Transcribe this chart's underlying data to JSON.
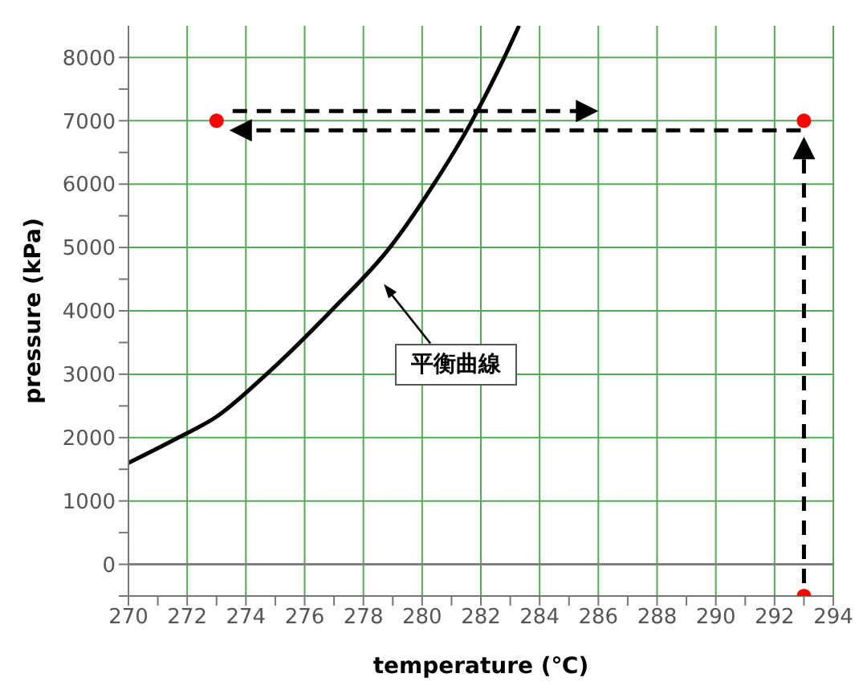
{
  "chart_data": {
    "type": "line",
    "xlabel": "temperature (℃)",
    "ylabel": "pressure (kPa)",
    "xlim": [
      270,
      294
    ],
    "ylim": [
      -500,
      8500
    ],
    "xticks": [
      270,
      {
        "value": 271,
        "label": null
      },
      272,
      {
        "value": 273,
        "label": null
      },
      274,
      {
        "value": 275,
        "label": null
      },
      276,
      {
        "value": 277,
        "label": null
      },
      278,
      {
        "value": 279,
        "label": null
      },
      280,
      {
        "value": 281,
        "label": null
      },
      282,
      {
        "value": 283,
        "label": null
      },
      284,
      {
        "value": 285,
        "label": null
      },
      286,
      {
        "value": 287,
        "label": null
      },
      288,
      {
        "value": 289,
        "label": null
      },
      290,
      {
        "value": 291,
        "label": null
      },
      292,
      {
        "value": 293,
        "label": null
      },
      294
    ],
    "yticks": [
      {
        "value": -500,
        "label": null
      },
      0,
      {
        "value": 500,
        "label": null
      },
      1000,
      {
        "value": 1500,
        "label": null
      },
      2000,
      {
        "value": 2500,
        "label": null
      },
      3000,
      {
        "value": 3500,
        "label": null
      },
      4000,
      {
        "value": 4500,
        "label": null
      },
      5000,
      {
        "value": 5500,
        "label": null
      },
      6000,
      {
        "value": 6500,
        "label": null
      },
      7000,
      {
        "value": 7500,
        "label": null
      },
      8000
    ],
    "grid": true,
    "ref_lines": [
      {
        "axis": "y",
        "value": 0,
        "color": "#808080"
      }
    ],
    "series": [
      {
        "color": "#000000",
        "marker": "none",
        "x": [
          270,
          271.7,
          273,
          274.7,
          276.9,
          278.9,
          280.4,
          281.7,
          282.8,
          283.3
        ],
        "values": [
          1600,
          2000,
          2330,
          3000,
          4000,
          5000,
          6000,
          7000,
          8000,
          8500
        ]
      },
      {
        "type": "scatter",
        "color": "#ff0000",
        "marker": "circle",
        "x": [
          273,
          293,
          293
        ],
        "values": [
          7000,
          7000,
          -500
        ]
      }
    ],
    "annotations": [
      "平衡曲線"
    ]
  }
}
